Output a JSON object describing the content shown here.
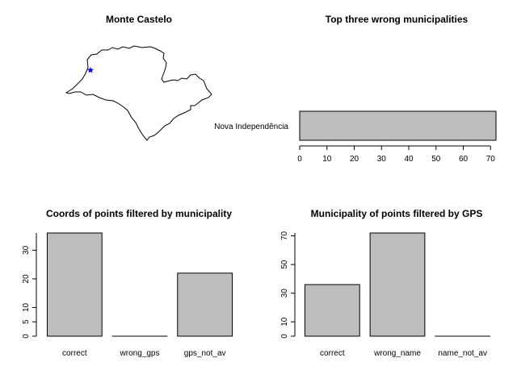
{
  "chart_data": [
    {
      "type": "map",
      "title": "Monte Castelo",
      "marker": {
        "shape": "star",
        "color": "#0000ff"
      }
    },
    {
      "type": "bar",
      "orientation": "horizontal",
      "title": "Top three wrong municipalities",
      "categories": [
        "Nova Independência"
      ],
      "values": [
        72
      ],
      "xlim": [
        0,
        72
      ],
      "xticks": [
        0,
        10,
        20,
        30,
        40,
        50,
        60,
        70
      ]
    },
    {
      "type": "bar",
      "title": "Coords of points filtered by municipality",
      "categories": [
        "correct",
        "wrong_gps",
        "gps_not_av"
      ],
      "values": [
        36,
        0,
        22
      ],
      "ylim": [
        0,
        36
      ],
      "yticks": [
        0,
        5,
        10,
        20,
        30
      ]
    },
    {
      "type": "bar",
      "title": "Municipality of points filtered by GPS",
      "categories": [
        "correct",
        "wrong_name",
        "name_not_av"
      ],
      "values": [
        36,
        72,
        0
      ],
      "ylim": [
        0,
        72
      ],
      "yticks": [
        0,
        10,
        30,
        50,
        70
      ]
    }
  ]
}
